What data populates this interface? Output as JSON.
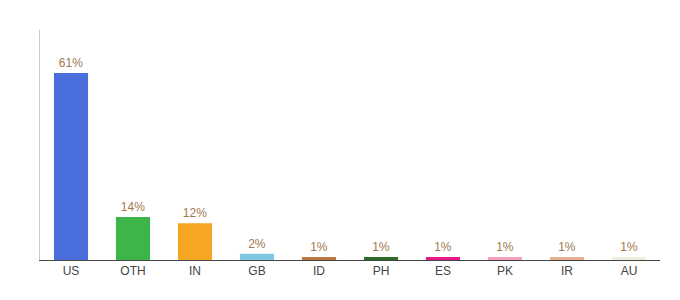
{
  "chart_data": {
    "type": "bar",
    "categories": [
      "US",
      "OTH",
      "IN",
      "GB",
      "ID",
      "PH",
      "ES",
      "PK",
      "IR",
      "AU"
    ],
    "values": [
      61,
      14,
      12,
      2,
      1,
      1,
      1,
      1,
      1,
      1
    ],
    "value_labels": [
      "61%",
      "14%",
      "12%",
      "2%",
      "1%",
      "1%",
      "1%",
      "1%",
      "1%",
      "1%"
    ],
    "colors": [
      "#4a6fdc",
      "#3cb54a",
      "#f5a623",
      "#7ec8e3",
      "#c07840",
      "#2a6e2a",
      "#e8178a",
      "#f4a0b8",
      "#e8b090",
      "#f0eedc"
    ],
    "ylim": [
      0,
      75
    ],
    "data_labels": true,
    "tick_labels": "x",
    "grid": false
  }
}
